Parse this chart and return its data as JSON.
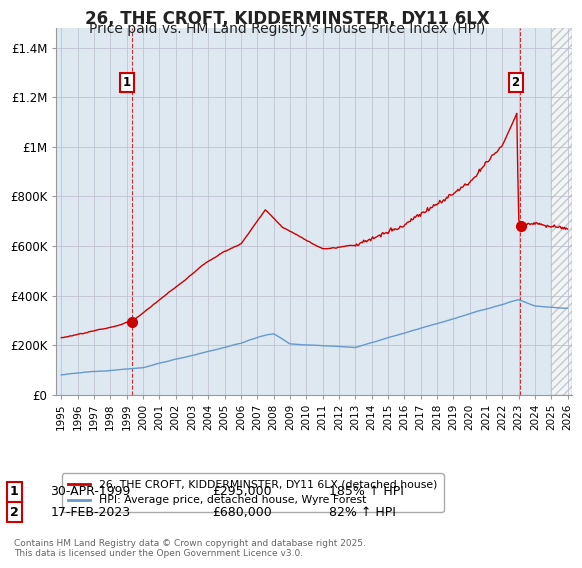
{
  "title": "26, THE CROFT, KIDDERMINSTER, DY11 6LX",
  "subtitle": "Price paid vs. HM Land Registry's House Price Index (HPI)",
  "title_fontsize": 12,
  "subtitle_fontsize": 10,
  "ylabel_ticks": [
    "£0",
    "£200K",
    "£400K",
    "£600K",
    "£800K",
    "£1M",
    "£1.2M",
    "£1.4M"
  ],
  "ytick_values": [
    0,
    200000,
    400000,
    600000,
    800000,
    1000000,
    1200000,
    1400000
  ],
  "ylim": [
    0,
    1480000
  ],
  "xlim_start": 1994.7,
  "xlim_end": 2026.3,
  "red_line_color": "#cc0000",
  "blue_line_color": "#6699cc",
  "grid_color": "#bbbbcc",
  "bg_color": "#ffffff",
  "plot_bg_color": "#dde8f0",
  "purchase1_x": 1999.33,
  "purchase1_y": 295000,
  "purchase2_x": 2023.12,
  "purchase2_y": 680000,
  "legend_line1": "26, THE CROFT, KIDDERMINSTER, DY11 6LX (detached house)",
  "legend_line2": "HPI: Average price, detached house, Wyre Forest",
  "footnote": "Contains HM Land Registry data © Crown copyright and database right 2025.\nThis data is licensed under the Open Government Licence v3.0.",
  "table_row1": [
    "1",
    "30-APR-1999",
    "£295,000",
    "185% ↑ HPI"
  ],
  "table_row2": [
    "2",
    "17-FEB-2023",
    "£680,000",
    "82% ↑ HPI"
  ],
  "hatch_start": 2025.0
}
